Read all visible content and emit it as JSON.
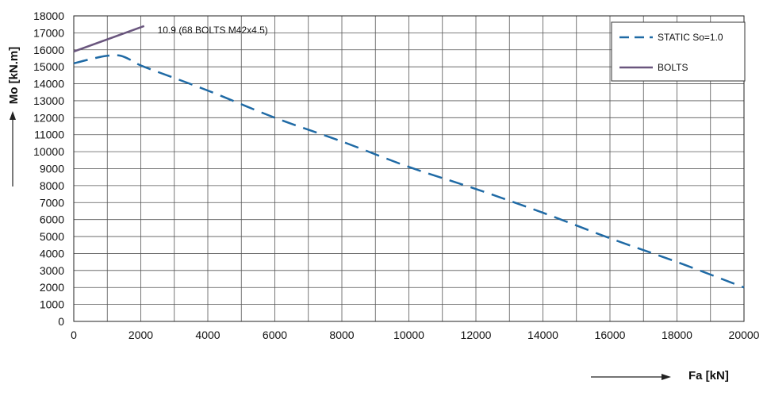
{
  "chart_data": {
    "type": "line",
    "title": "",
    "xlabel": "Fa [kN]",
    "ylabel": "Mo [kN.m]",
    "xlim": [
      0,
      20000
    ],
    "ylim": [
      0,
      18000
    ],
    "x_ticks": [
      "0",
      "2000",
      "4000",
      "6000",
      "8000",
      "10000",
      "12000",
      "14000",
      "16000",
      "18000",
      "20000"
    ],
    "y_ticks": [
      "0",
      "1000",
      "2000",
      "3000",
      "4000",
      "5000",
      "6000",
      "7000",
      "8000",
      "9000",
      "10000",
      "11000",
      "12000",
      "13000",
      "14000",
      "15000",
      "16000",
      "17000",
      "18000"
    ],
    "x_grid_step": 1000,
    "y_grid_step": 1000,
    "grid": true,
    "legend_position": "top-right",
    "series": [
      {
        "name": "STATIC So=1.0",
        "style": "dashed",
        "color": "#1f6aa5",
        "points": [
          [
            0,
            15200
          ],
          [
            500,
            15450
          ],
          [
            1000,
            15650
          ],
          [
            1400,
            15650
          ],
          [
            1800,
            15300
          ],
          [
            2100,
            15000
          ],
          [
            4000,
            13600
          ],
          [
            6000,
            12000
          ],
          [
            8000,
            10600
          ],
          [
            10000,
            9100
          ],
          [
            12000,
            7800
          ],
          [
            14000,
            6400
          ],
          [
            16000,
            4900
          ],
          [
            18000,
            3500
          ],
          [
            20000,
            2000
          ]
        ]
      },
      {
        "name": "BOLTS",
        "style": "solid",
        "color": "#6a567e",
        "points": [
          [
            0,
            15900
          ],
          [
            2100,
            17400
          ]
        ]
      }
    ],
    "annotations": [
      {
        "text": "10.9 (68 BOLTS M42x4.5)",
        "x": 2500,
        "y": 17200
      }
    ]
  }
}
